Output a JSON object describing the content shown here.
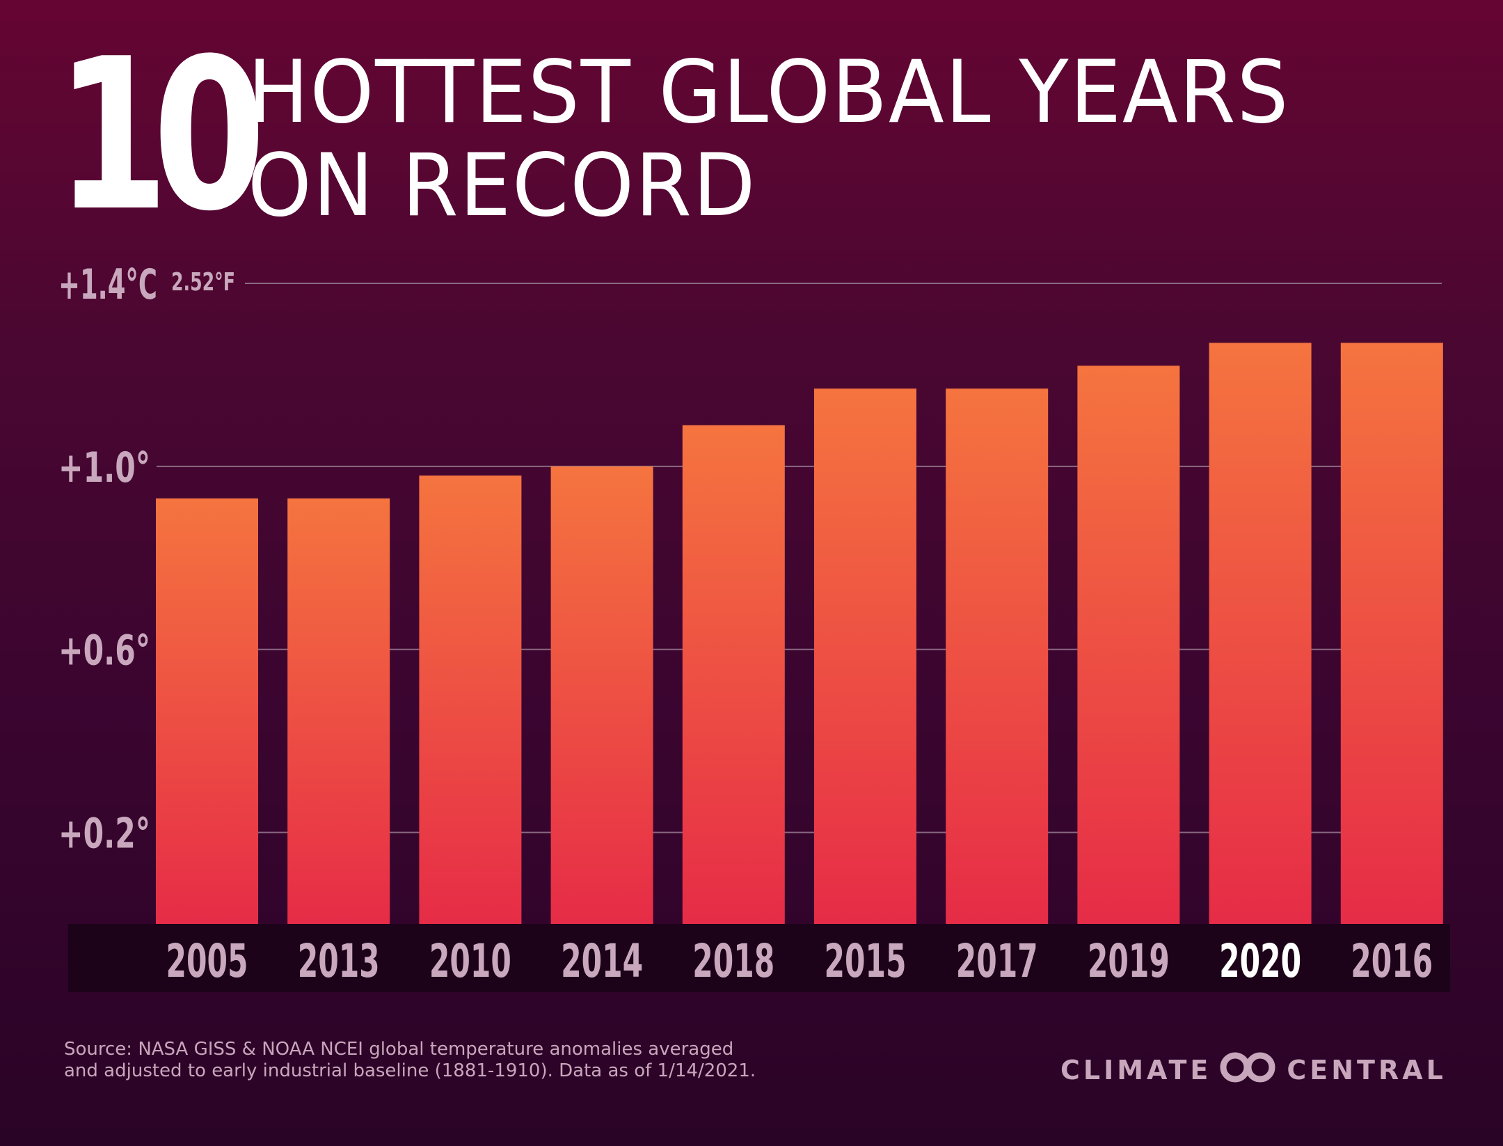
{
  "title": {
    "number": "10",
    "line1": "HOTTEST GLOBAL YEARS",
    "line2": "ON RECORD"
  },
  "chart_data": {
    "type": "bar",
    "categories": [
      "2005",
      "2013",
      "2010",
      "2014",
      "2018",
      "2015",
      "2017",
      "2019",
      "2020",
      "2016"
    ],
    "values": [
      0.93,
      0.93,
      0.98,
      1.0,
      1.09,
      1.17,
      1.17,
      1.22,
      1.27,
      1.27
    ],
    "highlight_category": "2020",
    "ylim": [
      0,
      1.4
    ],
    "yticks": [
      {
        "value": 0.2,
        "label": "+0.2°"
      },
      {
        "value": 0.6,
        "label": "+0.6°"
      },
      {
        "value": 1.0,
        "label": "+1.0°"
      },
      {
        "value": 1.4,
        "label": "+1.4°C"
      }
    ],
    "top_tick_secondary_label": "2.52°F",
    "grid": true,
    "colors": {
      "bar_top": "#f5743f",
      "bar_bottom": "#e62c47",
      "gridline": "#8a6a82",
      "tick_label": "#c9a8bd",
      "category_label": "#c9a8bd",
      "highlight_label": "#ffffff",
      "category_band": "#1c0319"
    }
  },
  "source": "Source: NASA GISS & NOAA NCEI global temperature anomalies averaged\nand adjusted to early industrial baseline (1881-1910). Data as of 1/14/2021.",
  "brand": {
    "left": "CLIMATE",
    "right": "CENTRAL",
    "logo_icon": "double-ring-logo-icon"
  }
}
